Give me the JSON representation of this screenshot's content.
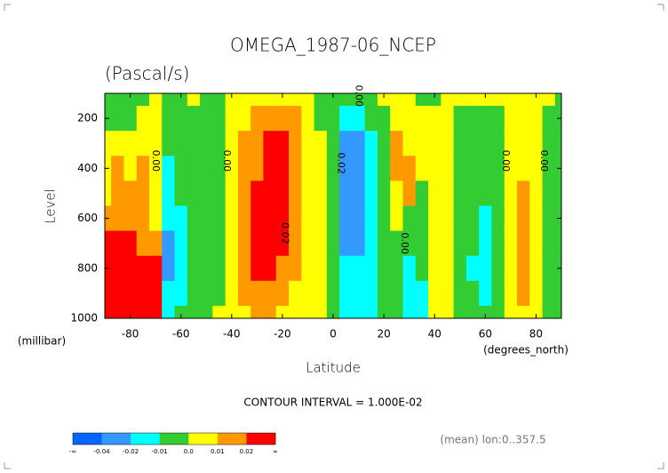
{
  "chart_data": {
    "type": "contour",
    "title": "OMEGA_1987-06_NCEP",
    "subtitle": "(Pascal/s)",
    "x_label": "Latitude",
    "x_units": "(degrees_north)",
    "y_label": "Level",
    "y_units": "(millibar)",
    "contour_interval": "CONTOUR INTERVAL = 1.000E-02",
    "footnote": "(mean) lon:0..357.5",
    "xlim": [
      -90,
      90
    ],
    "ylim": [
      1000,
      100
    ],
    "xticks": [
      -80,
      -60,
      -40,
      -20,
      0,
      20,
      40,
      60,
      80
    ],
    "yticks": [
      200,
      400,
      600,
      800,
      1000
    ],
    "x": [
      -90,
      -85,
      -80,
      -75,
      -70,
      -65,
      -60,
      -55,
      -50,
      -45,
      -40,
      -35,
      -30,
      -25,
      -20,
      -15,
      -10,
      -5,
      0,
      5,
      10,
      15,
      20,
      25,
      30,
      35,
      40,
      45,
      50,
      55,
      60,
      65,
      70,
      75,
      80,
      85,
      90
    ],
    "y": [
      100,
      200,
      300,
      400,
      500,
      600,
      700,
      800,
      900,
      1000
    ],
    "z": [
      [
        -0.005,
        -0.005,
        0.005,
        0.005,
        0.005,
        0.015,
        0.03,
        0.03,
        0.03,
        0.03
      ],
      [
        -0.005,
        -0.005,
        0.005,
        0.015,
        0.015,
        0.015,
        0.03,
        0.03,
        0.03,
        0.03
      ],
      [
        -0.005,
        -0.005,
        0.005,
        0.005,
        0.015,
        0.015,
        0.03,
        0.03,
        0.03,
        0.03
      ],
      [
        -0.005,
        0.005,
        0.005,
        0.015,
        0.015,
        0.015,
        0.015,
        0.03,
        0.03,
        0.03
      ],
      [
        0.005,
        0.005,
        0.005,
        0.005,
        0.005,
        0.005,
        0.015,
        0.03,
        0.03,
        0.03
      ],
      [
        -0.005,
        -0.005,
        -0.005,
        -0.015,
        -0.015,
        -0.015,
        -0.03,
        -0.03,
        -0.015,
        -0.015
      ],
      [
        -0.005,
        -0.005,
        -0.005,
        -0.005,
        -0.005,
        -0.015,
        -0.015,
        -0.015,
        -0.015,
        -0.005
      ],
      [
        0.005,
        -0.005,
        -0.005,
        -0.005,
        -0.005,
        -0.005,
        -0.005,
        -0.005,
        -0.005,
        -0.005
      ],
      [
        -0.005,
        -0.005,
        -0.005,
        -0.005,
        -0.005,
        -0.005,
        -0.005,
        -0.005,
        -0.005,
        -0.005
      ],
      [
        -0.005,
        -0.005,
        -0.005,
        -0.005,
        -0.005,
        -0.005,
        -0.005,
        -0.005,
        -0.005,
        0.005
      ],
      [
        0.005,
        0.005,
        0.005,
        0.005,
        0.005,
        0.005,
        0.005,
        0.005,
        0.005,
        0.005
      ],
      [
        0.005,
        0.005,
        0.015,
        0.015,
        0.015,
        0.015,
        0.015,
        0.015,
        0.015,
        0.005
      ],
      [
        0.005,
        0.015,
        0.015,
        0.015,
        0.03,
        0.03,
        0.03,
        0.03,
        0.015,
        0.015
      ],
      [
        0.005,
        0.015,
        0.03,
        0.03,
        0.03,
        0.03,
        0.03,
        0.03,
        0.015,
        0.015
      ],
      [
        0.005,
        0.015,
        0.03,
        0.03,
        0.03,
        0.03,
        0.03,
        0.015,
        0.015,
        0.005
      ],
      [
        0.005,
        0.015,
        0.015,
        0.015,
        0.015,
        0.015,
        0.015,
        0.015,
        0.005,
        0.005
      ],
      [
        0.005,
        0.005,
        0.005,
        0.005,
        0.005,
        0.005,
        0.005,
        0.005,
        0.005,
        0.005
      ],
      [
        -0.005,
        -0.005,
        0.005,
        0.005,
        0.005,
        0.005,
        0.005,
        0.005,
        0.005,
        0.005
      ],
      [
        -0.005,
        -0.005,
        -0.005,
        -0.005,
        -0.005,
        -0.005,
        -0.005,
        -0.005,
        -0.005,
        -0.005
      ],
      [
        -0.005,
        -0.015,
        -0.03,
        -0.03,
        -0.03,
        -0.03,
        -0.03,
        -0.015,
        -0.015,
        -0.015
      ],
      [
        -0.005,
        -0.015,
        -0.03,
        -0.03,
        -0.03,
        -0.03,
        -0.03,
        -0.015,
        -0.015,
        -0.015
      ],
      [
        -0.005,
        -0.005,
        -0.015,
        -0.015,
        -0.015,
        -0.015,
        -0.015,
        -0.015,
        -0.015,
        -0.015
      ],
      [
        0.005,
        -0.005,
        -0.005,
        -0.005,
        -0.005,
        -0.005,
        -0.005,
        -0.005,
        -0.005,
        -0.005
      ],
      [
        0.005,
        0.005,
        0.015,
        0.015,
        0.005,
        0.005,
        -0.005,
        -0.005,
        -0.005,
        -0.005
      ],
      [
        0.005,
        0.005,
        0.005,
        0.015,
        0.015,
        -0.005,
        -0.005,
        -0.015,
        -0.015,
        -0.015
      ],
      [
        -0.005,
        0.005,
        0.005,
        0.005,
        -0.005,
        -0.005,
        -0.005,
        -0.005,
        -0.015,
        -0.015
      ],
      [
        -0.005,
        0.005,
        0.005,
        0.005,
        0.005,
        0.005,
        0.005,
        0.005,
        0.005,
        0.005
      ],
      [
        0.005,
        0.005,
        0.005,
        0.005,
        0.005,
        0.005,
        0.005,
        0.005,
        0.005,
        0.005
      ],
      [
        0.005,
        -0.005,
        -0.005,
        -0.005,
        -0.005,
        -0.005,
        -0.005,
        -0.005,
        -0.005,
        -0.005
      ],
      [
        0.005,
        -0.005,
        -0.005,
        -0.005,
        -0.005,
        -0.005,
        -0.005,
        -0.015,
        -0.005,
        -0.005
      ],
      [
        0.005,
        -0.005,
        -0.005,
        -0.005,
        -0.005,
        -0.015,
        -0.015,
        -0.015,
        -0.015,
        -0.005
      ],
      [
        0.005,
        -0.005,
        -0.005,
        -0.005,
        -0.005,
        -0.005,
        -0.005,
        -0.005,
        -0.005,
        -0.005
      ],
      [
        0.005,
        0.005,
        0.005,
        0.005,
        0.005,
        0.005,
        0.005,
        0.005,
        0.005,
        0.005
      ],
      [
        0.005,
        0.005,
        0.005,
        0.005,
        0.015,
        0.015,
        0.015,
        0.015,
        0.015,
        0.005
      ],
      [
        0.005,
        0.005,
        0.005,
        0.005,
        0.005,
        0.005,
        0.005,
        0.005,
        0.005,
        0.005
      ],
      [
        0.005,
        -0.005,
        -0.005,
        -0.005,
        -0.005,
        -0.005,
        -0.005,
        -0.005,
        -0.005,
        -0.005
      ],
      [
        -0.005,
        -0.005,
        -0.005,
        -0.005,
        -0.005,
        -0.005,
        -0.005,
        -0.005,
        -0.005,
        -0.005
      ]
    ],
    "colorbar_ticks": [
      "-∞",
      -0.04,
      -0.02,
      -0.01,
      {
        "value": 0,
        "label": "0.0"
      },
      0.01,
      0.02,
      "∞"
    ],
    "colors": [
      "#0066ff",
      "#3399ff",
      "#00ffff",
      "#33cc33",
      "#ffff00",
      "#ff9900",
      "#ff0000"
    ],
    "contour_labels": [
      {
        "text": "0.00",
        "x": -70,
        "y": 370
      },
      {
        "text": "0.00",
        "x": -42,
        "y": 370
      },
      {
        "text": "0.00",
        "x": 10,
        "y": 110
      },
      {
        "text": "0.02",
        "x": 3,
        "y": 380
      },
      {
        "text": "0.02",
        "x": -19,
        "y": 660
      },
      {
        "text": "0.00",
        "x": 28,
        "y": 700
      },
      {
        "text": "0.00",
        "x": 68,
        "y": 370
      },
      {
        "text": "0.00",
        "x": 83,
        "y": 370
      }
    ]
  }
}
